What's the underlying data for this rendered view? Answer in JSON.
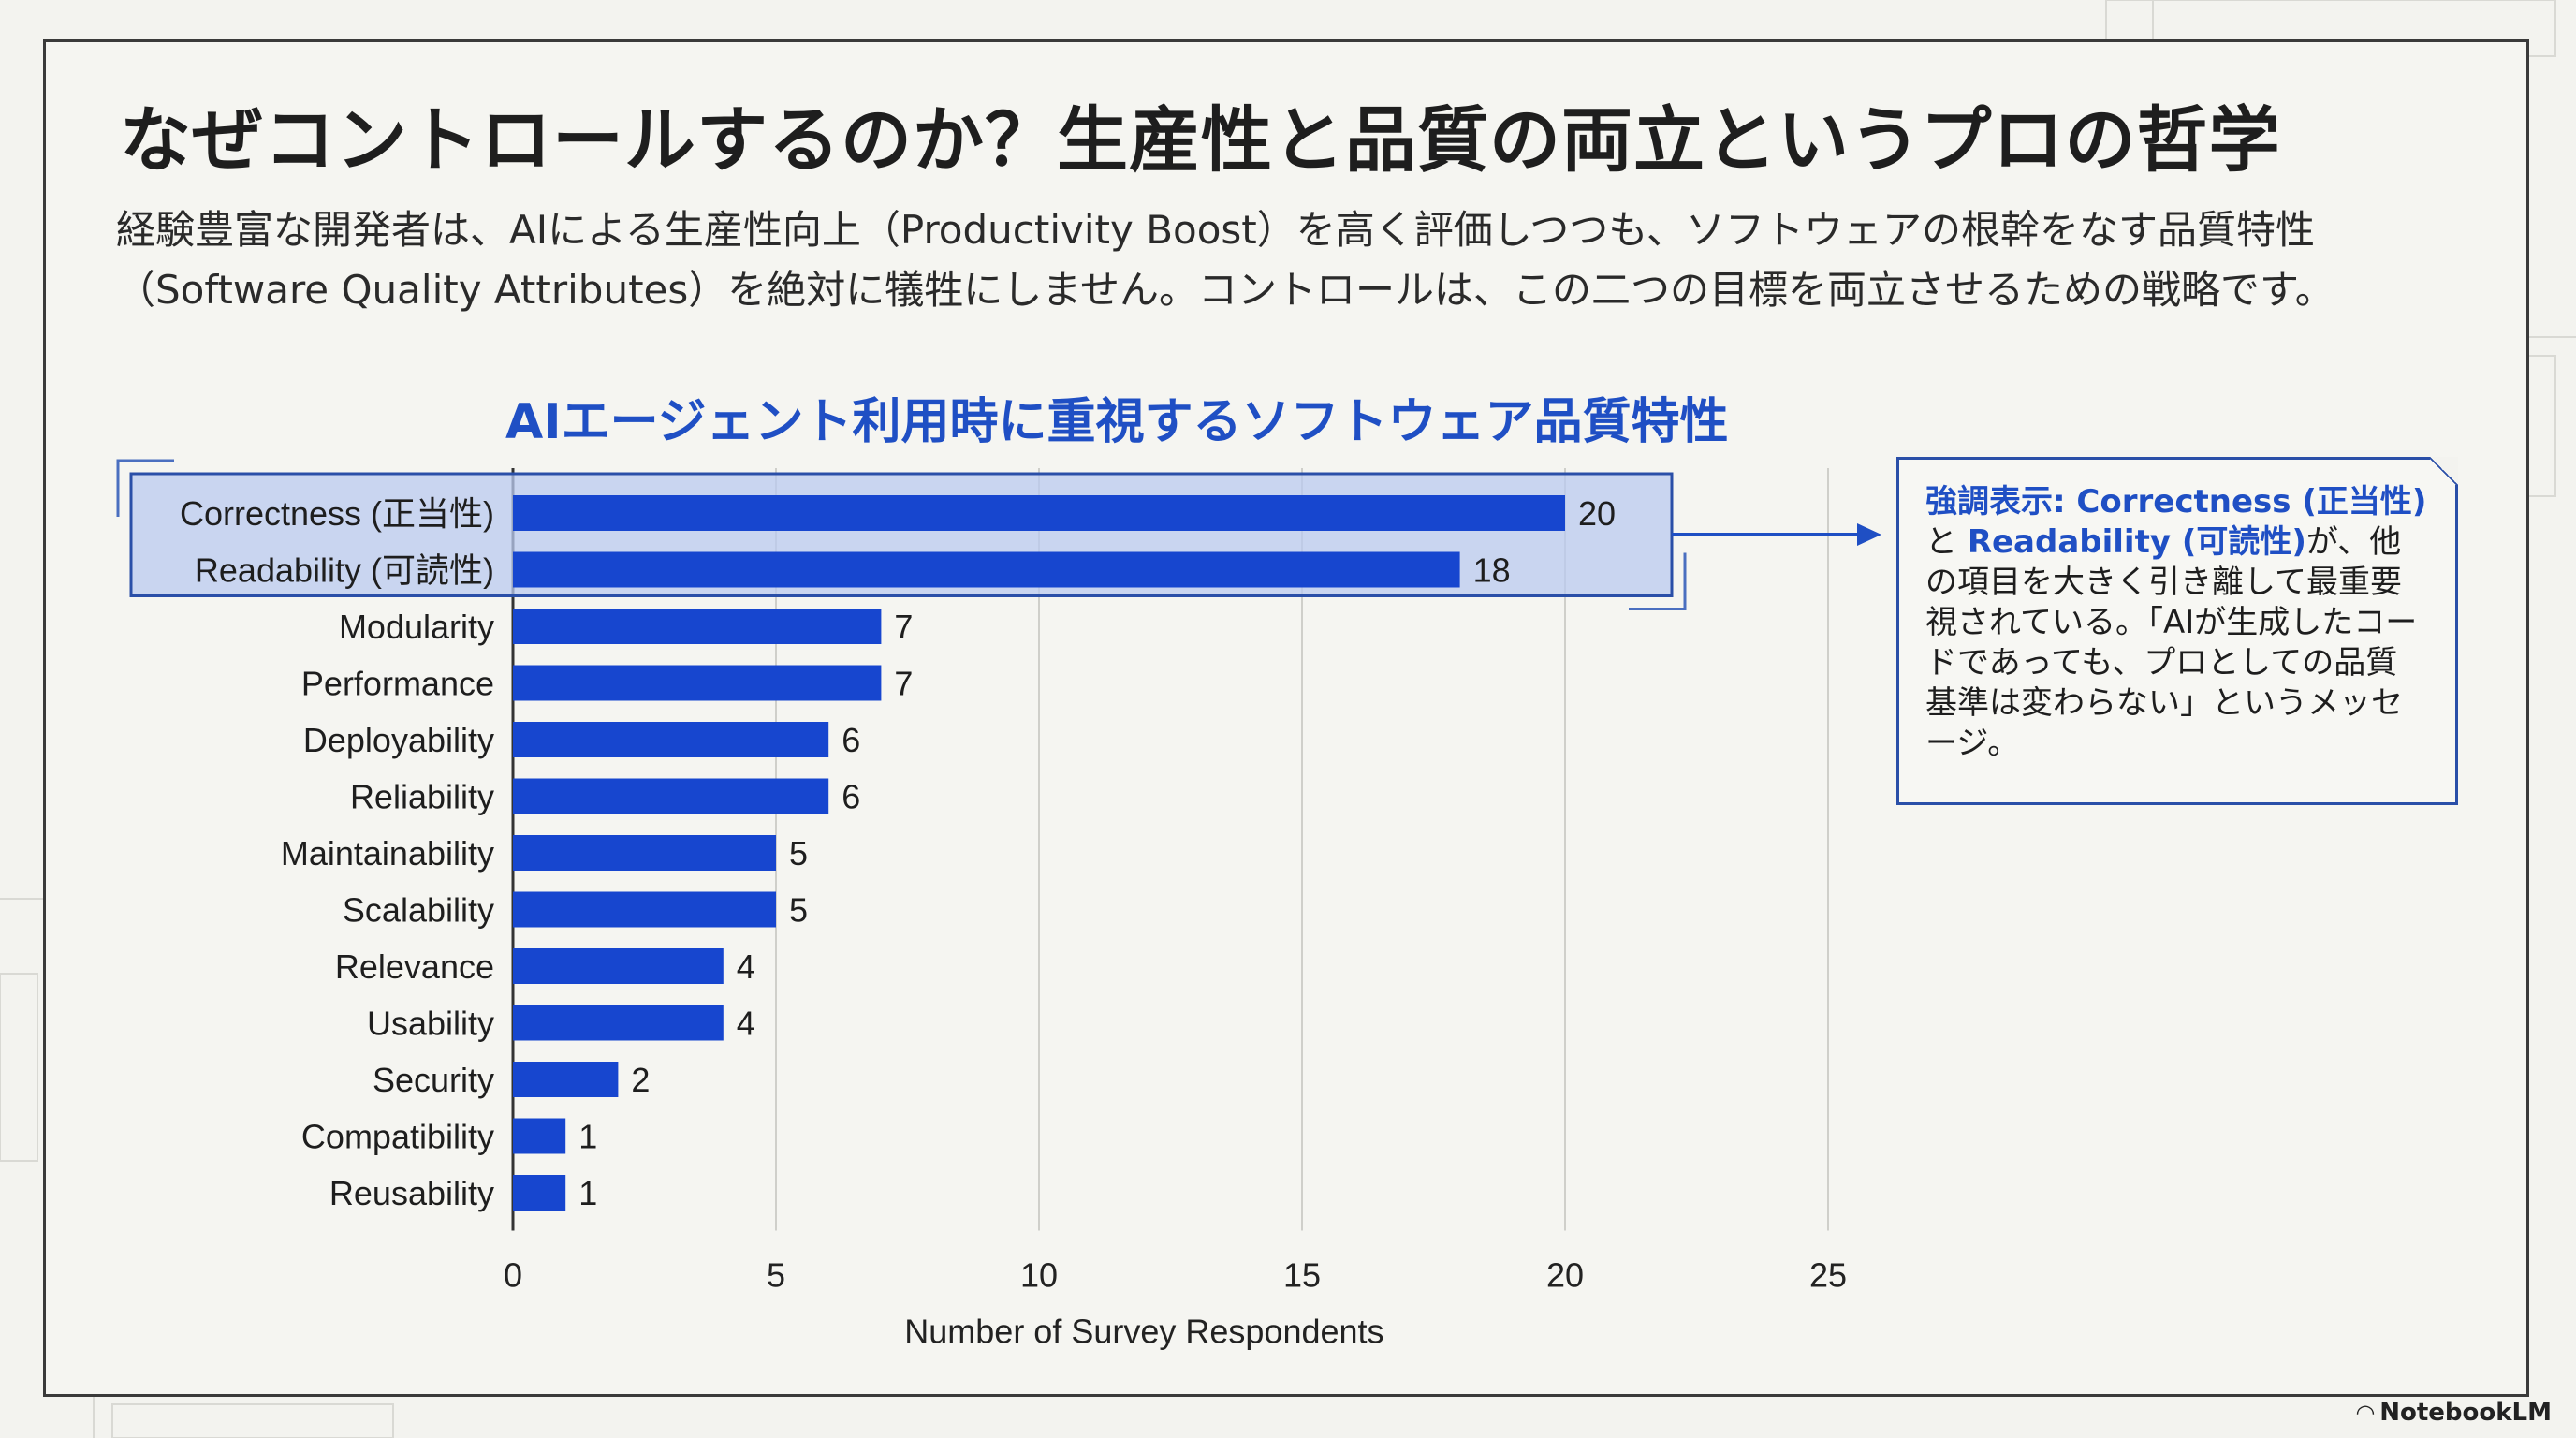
{
  "title": "なぜコントロールするのか？生産性と品質の両立というプロの哲学",
  "subtitle_lines": [
    "経験豊富な開発者は、AIによる生産性向上（Productivity Boost）を高く評価しつつも、ソフトウェアの根幹をなす品質特性",
    "（Software Quality Attributes）を絶対に犠牲にしません。コントロールは、この二つの目標を両立させるための戦略です。"
  ],
  "callout": {
    "hl1": "強調表示: Correctness (正当性)",
    "t1": "と",
    "hl2": "Readability (可読性)",
    "t2": "が、他の項目を大きく引き離して最重要視されている。「AIが生成したコードであっても、プロとしての品質基準は変わらない」というメッセージ。"
  },
  "footer": {
    "logo_text": "NotebookLM",
    "logo_icon": "notebooklm-logo-icon"
  },
  "colors": {
    "bar": "#1746cf",
    "title_blue": "#1f4fc4",
    "highlight_fill": "#b9c9ef",
    "highlight_border": "#2a4fa8"
  },
  "chart_data": {
    "type": "bar",
    "orientation": "horizontal",
    "title": "AIエージェント利用時に重視するソフトウェア品質特性",
    "xlabel": "Number of Survey Respondents",
    "ylabel": "",
    "xlim": [
      0,
      25
    ],
    "xticks": [
      0,
      5,
      10,
      15,
      20,
      25
    ],
    "grid": "vertical",
    "categories": [
      "Correctness (正当性)",
      "Readability (可読性)",
      "Modularity",
      "Performance",
      "Deployability",
      "Reliability",
      "Maintainability",
      "Scalability",
      "Relevance",
      "Usability",
      "Security",
      "Compatibility",
      "Reusability"
    ],
    "values": [
      20,
      18,
      7,
      7,
      6,
      6,
      5,
      5,
      4,
      4,
      2,
      1,
      1
    ],
    "highlighted": [
      "Correctness (正当性)",
      "Readability (可読性)"
    ]
  }
}
